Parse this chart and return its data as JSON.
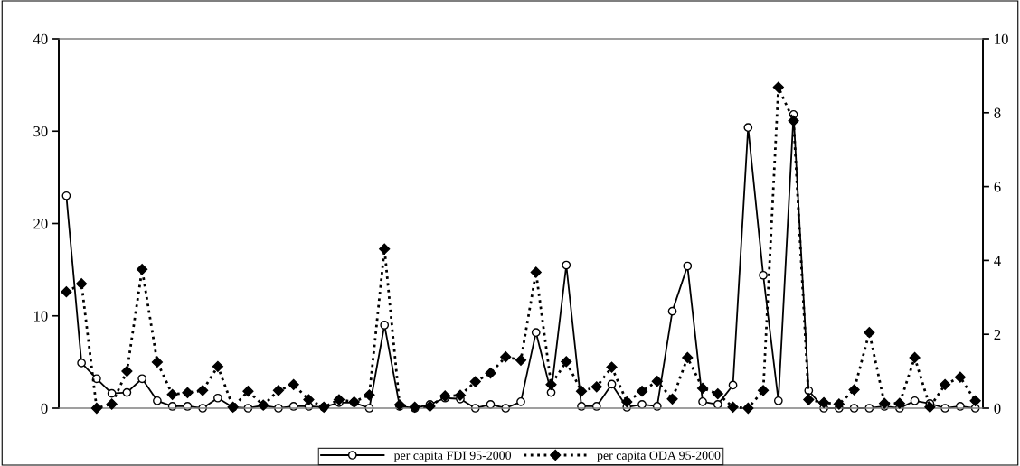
{
  "chart_data": {
    "type": "line",
    "categories": [
      null,
      null,
      null,
      null,
      null,
      null,
      null,
      null,
      null,
      null,
      null,
      null,
      null,
      null,
      null,
      null,
      null,
      null,
      null,
      null,
      null,
      null,
      null,
      null,
      null,
      null,
      null,
      null,
      null,
      null,
      null,
      null,
      null,
      null,
      null,
      null,
      null,
      null,
      null,
      null,
      null,
      null,
      null,
      null,
      null,
      null,
      null,
      null,
      null,
      null,
      null,
      null,
      null,
      null,
      null,
      null,
      null,
      null,
      null,
      null,
      null
    ],
    "series": [
      {
        "name": "per capita FDI 95-2000",
        "color": "#000000",
        "marker": "circle",
        "line_style": "solid",
        "values": [
          23.0,
          4.9,
          3.2,
          1.6,
          1.7,
          3.2,
          0.8,
          0.2,
          0.2,
          0.0,
          1.1,
          0.1,
          0.0,
          0.3,
          0.0,
          0.2,
          0.2,
          0.1,
          0.6,
          0.6,
          0.0,
          9.0,
          0.2,
          0.0,
          0.4,
          1.1,
          1.0,
          0.0,
          0.4,
          0.0,
          0.7,
          8.2,
          1.7,
          15.5,
          0.2,
          0.2,
          2.6,
          0.1,
          0.4,
          0.2,
          10.5,
          15.4,
          0.7,
          0.4,
          2.5,
          30.4,
          14.4,
          0.8,
          31.8,
          1.9,
          0.0,
          0.0,
          0.0,
          0.0,
          0.2,
          0.0,
          0.8,
          0.5,
          0.0,
          0.2,
          0.0
        ]
      },
      {
        "name": "per capita ODA 95-2000",
        "color": "#000000",
        "marker": "diamond",
        "line_style": "dotted",
        "axis": "y2",
        "values": [
          3.15,
          3.37,
          0.0,
          0.11,
          1.0,
          3.76,
          1.25,
          0.37,
          0.42,
          0.48,
          1.13,
          0.03,
          0.46,
          0.08,
          0.48,
          0.64,
          0.23,
          0.03,
          0.23,
          0.17,
          0.36,
          4.31,
          0.09,
          0.03,
          0.05,
          0.33,
          0.35,
          0.72,
          0.95,
          1.39,
          1.3,
          3.68,
          0.64,
          1.26,
          0.46,
          0.58,
          1.11,
          0.17,
          0.46,
          0.73,
          0.25,
          1.37,
          0.54,
          0.39,
          0.03,
          0.0,
          0.48,
          8.69,
          7.78,
          0.23,
          0.15,
          0.11,
          0.5,
          2.05,
          0.13,
          0.13,
          1.37,
          0.03,
          0.64,
          0.84,
          0.2
        ]
      }
    ],
    "ylim": [
      0,
      40
    ],
    "yticks": [
      0,
      10,
      20,
      30,
      40
    ],
    "y2lim": [
      0,
      10
    ],
    "y2ticks": [
      0,
      2,
      4,
      6,
      8,
      10
    ],
    "grid": false,
    "legend": "bottom"
  }
}
